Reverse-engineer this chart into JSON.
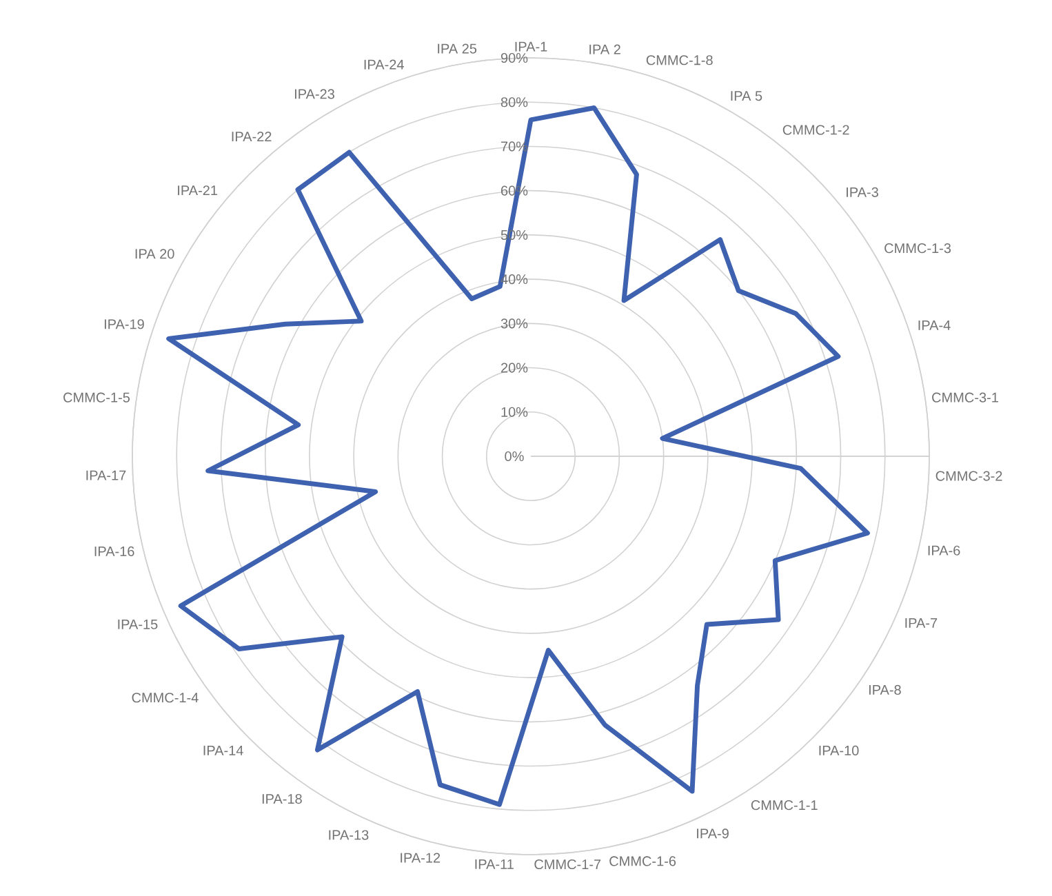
{
  "chart_data": {
    "type": "radar",
    "categories": [
      "IPA-1",
      "IPA 2",
      "CMMC-1-8",
      "IPA 5",
      "CMMC-1-2",
      "IPA-3",
      "CMMC-1-3",
      "IPA-4",
      "CMMC-3-1",
      "CMMC-3-2",
      "IPA-6",
      "IPA-7",
      "IPA-8",
      "IPA-10",
      "CMMC-1-1",
      "IPA-9",
      "CMMC-1-6",
      "CMMC-1-7",
      "IPA-11",
      "IPA-12",
      "IPA-13",
      "IPA-18",
      "IPA-14",
      "CMMC-1-4",
      "IPA-15",
      "IPA-16",
      "IPA-17",
      "CMMC-1-5",
      "IPA-19",
      "IPA 20",
      "IPA-21",
      "IPA-22",
      "IPA-23",
      "IPA-24",
      "IPA 25"
    ],
    "series": [
      {
        "color": "#3f62b0",
        "values": [
          76,
          80,
          68,
          41,
          65,
          60,
          68,
          73,
          30,
          61,
          78,
          60,
          67,
          55,
          64,
          84,
          63,
          44,
          79,
          77,
          59,
          82,
          59,
          79,
          86,
          36,
          73,
          53,
          86,
          63,
          49,
          80,
          80,
          38,
          39
        ]
      }
    ],
    "ylim": [
      0,
      90
    ],
    "yticks": [
      {
        "value": 0,
        "label": "0%"
      },
      {
        "value": 10,
        "label": "10%"
      },
      {
        "value": 20,
        "label": "20%"
      },
      {
        "value": 30,
        "label": "30%"
      },
      {
        "value": 40,
        "label": "40%"
      },
      {
        "value": 50,
        "label": "50%"
      },
      {
        "value": 60,
        "label": "60%"
      },
      {
        "value": 70,
        "label": "70%"
      },
      {
        "value": 80,
        "label": "80%"
      },
      {
        "value": 90,
        "label": "90%"
      }
    ],
    "grid": true
  }
}
